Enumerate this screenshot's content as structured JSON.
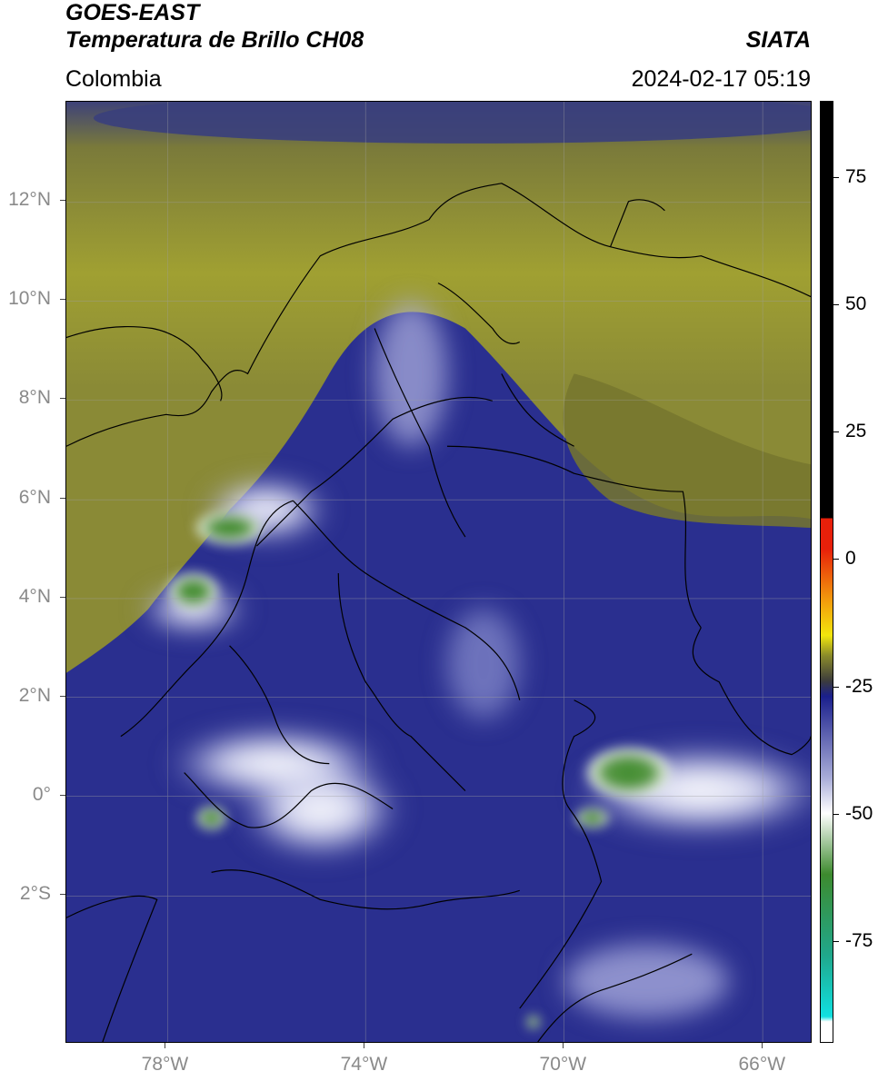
{
  "header": {
    "line1": "GOES-EAST",
    "line2": "Temperatura de Brillo CH08",
    "org": "SIATA",
    "region": "Colombia",
    "timestamp": "2024-02-17 05:19"
  },
  "map": {
    "extent": {
      "lon_min": -80.0,
      "lon_max": -65.0,
      "lat_min": -5.0,
      "lat_max": 14.0
    },
    "lat_ticks": [
      {
        "value": 12,
        "label": "12°N"
      },
      {
        "value": 10,
        "label": "10°N"
      },
      {
        "value": 8,
        "label": "8°N"
      },
      {
        "value": 6,
        "label": "6°N"
      },
      {
        "value": 4,
        "label": "4°N"
      },
      {
        "value": 2,
        "label": "2°N"
      },
      {
        "value": 0,
        "label": "0°"
      },
      {
        "value": -2,
        "label": "2°S"
      }
    ],
    "lon_ticks": [
      {
        "value": -78,
        "label": "78°W"
      },
      {
        "value": -74,
        "label": "74°W"
      },
      {
        "value": -70,
        "label": "70°W"
      },
      {
        "value": -66,
        "label": "66°W"
      }
    ],
    "grid": true
  },
  "colorbar": {
    "min": -95,
    "max": 90,
    "ticks": [
      {
        "value": 75,
        "label": "75"
      },
      {
        "value": 50,
        "label": "50"
      },
      {
        "value": 25,
        "label": "25"
      },
      {
        "value": 0,
        "label": "0"
      },
      {
        "value": -25,
        "label": "-25"
      },
      {
        "value": -50,
        "label": "-50"
      },
      {
        "value": -75,
        "label": "-75"
      }
    ],
    "colors": {
      "black": "#000000",
      "red": "#e8200a",
      "orange": "#f29a0c",
      "yellow": "#f2e60c",
      "olive": "#8a8a2a",
      "gray": "#3c3c3c",
      "navy": "#1a1f8c",
      "lavender": "#a8acd8",
      "white": "#ffffff",
      "green": "#3d8a2e",
      "teal": "#20a88c",
      "cyan": "#10e0e0"
    }
  }
}
